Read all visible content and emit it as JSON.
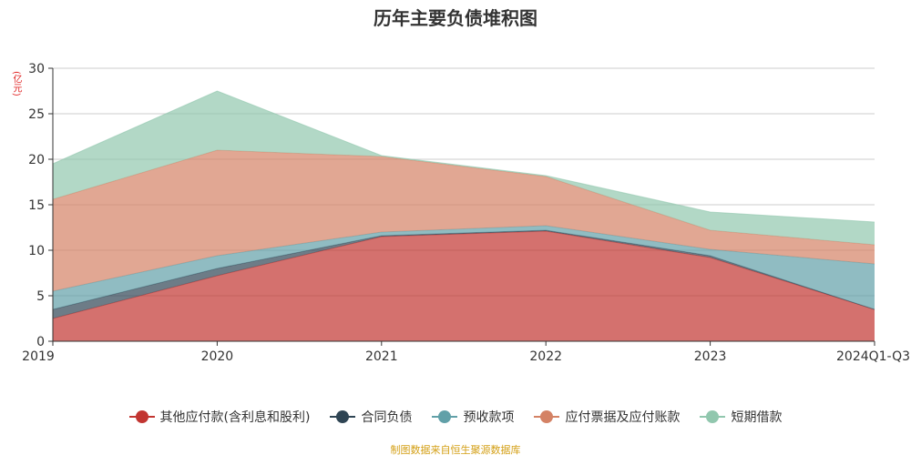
{
  "chart_data": {
    "type": "area",
    "stacked": true,
    "title": "历年主要负债堆积图",
    "ylabel": "(亿元)",
    "ylim": [
      0,
      30
    ],
    "yticks": [
      0,
      5,
      10,
      15,
      20,
      25,
      30
    ],
    "grid": true,
    "legend_position": "bottom",
    "categories": [
      "2019",
      "2020",
      "2021",
      "2022",
      "2023",
      "2024Q1-Q3"
    ],
    "series": [
      {
        "name": "其他应付款(含利息和股利)",
        "color": "#c23531",
        "values": [
          2.5,
          7.2,
          11.5,
          12.1,
          9.2,
          3.5
        ]
      },
      {
        "name": "合同负债",
        "color": "#2f4554",
        "values": [
          1.0,
          0.8,
          0.1,
          0.1,
          0.2,
          0.0
        ]
      },
      {
        "name": "预收款项",
        "color": "#61a0a8",
        "values": [
          2.0,
          1.4,
          0.4,
          0.5,
          0.7,
          5.0
        ]
      },
      {
        "name": "应付票据及应付账款",
        "color": "#d48265",
        "values": [
          10.1,
          11.6,
          8.3,
          5.4,
          2.1,
          2.1
        ]
      },
      {
        "name": "短期借款",
        "color": "#91c7ae",
        "values": [
          3.9,
          6.5,
          0.1,
          0.1,
          2.0,
          2.5
        ]
      }
    ]
  },
  "source": "制图数据来自恒生聚源数据库"
}
